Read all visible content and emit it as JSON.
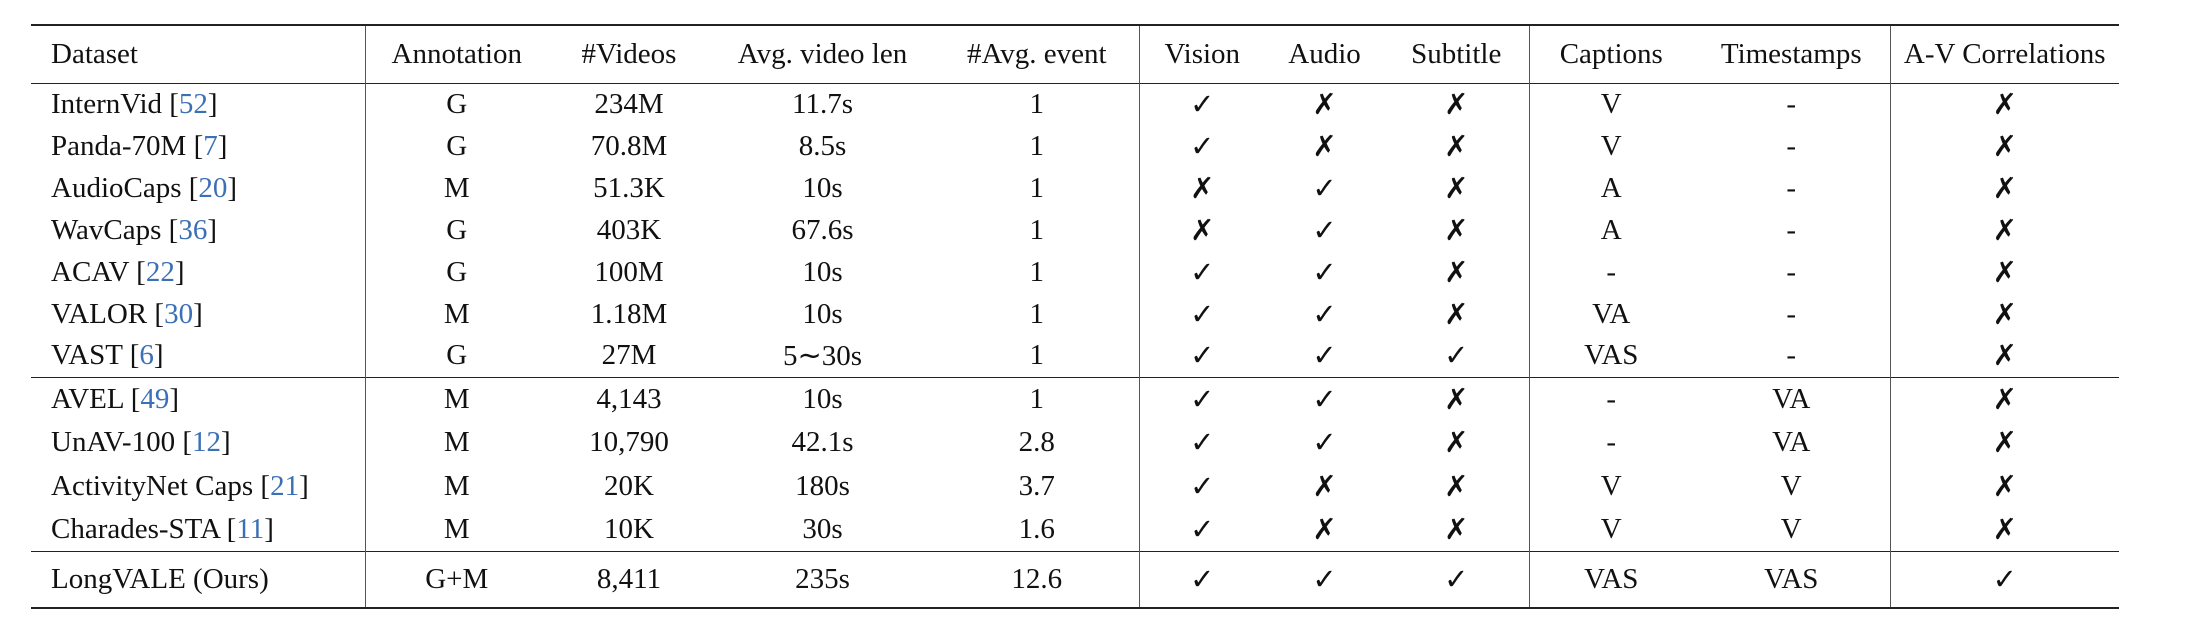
{
  "table": {
    "header": [
      "Dataset",
      "Annotation",
      "#Videos",
      "Avg. video len",
      "#Avg. event",
      "Vision",
      "Audio",
      "Subtitle",
      "Captions",
      "Timestamps",
      "A-V Correlations"
    ],
    "groups": [
      [
        [
          "InternVid [52]",
          "G",
          "234M",
          "11.7s",
          "1",
          "✓",
          "✗",
          "✗",
          "V",
          "-",
          "✗"
        ],
        [
          "Panda-70M [7]",
          "G",
          "70.8M",
          "8.5s",
          "1",
          "✓",
          "✗",
          "✗",
          "V",
          "-",
          "✗"
        ],
        [
          "AudioCaps [20]",
          "M",
          "51.3K",
          "10s",
          "1",
          "✗",
          "✓",
          "✗",
          "A",
          "-",
          "✗"
        ],
        [
          "WavCaps [36]",
          "G",
          "403K",
          "67.6s",
          "1",
          "✗",
          "✓",
          "✗",
          "A",
          "-",
          "✗"
        ],
        [
          "ACAV [22]",
          "G",
          "100M",
          "10s",
          "1",
          "✓",
          "✓",
          "✗",
          "-",
          "-",
          "✗"
        ],
        [
          "VALOR [30]",
          "M",
          "1.18M",
          "10s",
          "1",
          "✓",
          "✓",
          "✗",
          "VA",
          "-",
          "✗"
        ],
        [
          "VAST [6]",
          "G",
          "27M",
          "5∼30s",
          "1",
          "✓",
          "✓",
          "✓",
          "VAS",
          "-",
          "✗"
        ]
      ],
      [
        [
          "AVEL [49]",
          "M",
          "4,143",
          "10s",
          "1",
          "✓",
          "✓",
          "✗",
          "-",
          "VA",
          "✗"
        ],
        [
          "UnAV-100 [12]",
          "M",
          "10,790",
          "42.1s",
          "2.8",
          "✓",
          "✓",
          "✗",
          "-",
          "VA",
          "✗"
        ],
        [
          "ActivityNet Caps [21]",
          "M",
          "20K",
          "180s",
          "3.7",
          "✓",
          "✗",
          "✗",
          "V",
          "V",
          "✗"
        ],
        [
          "Charades-STA [11]",
          "M",
          "10K",
          "30s",
          "1.6",
          "✓",
          "✗",
          "✗",
          "V",
          "V",
          "✗"
        ]
      ],
      [
        [
          "LongVALE (Ours)",
          "G+M",
          "8,411",
          "235s",
          "12.6",
          "✓",
          "✓",
          "✓",
          "VAS",
          "VAS",
          "✓"
        ]
      ]
    ]
  }
}
